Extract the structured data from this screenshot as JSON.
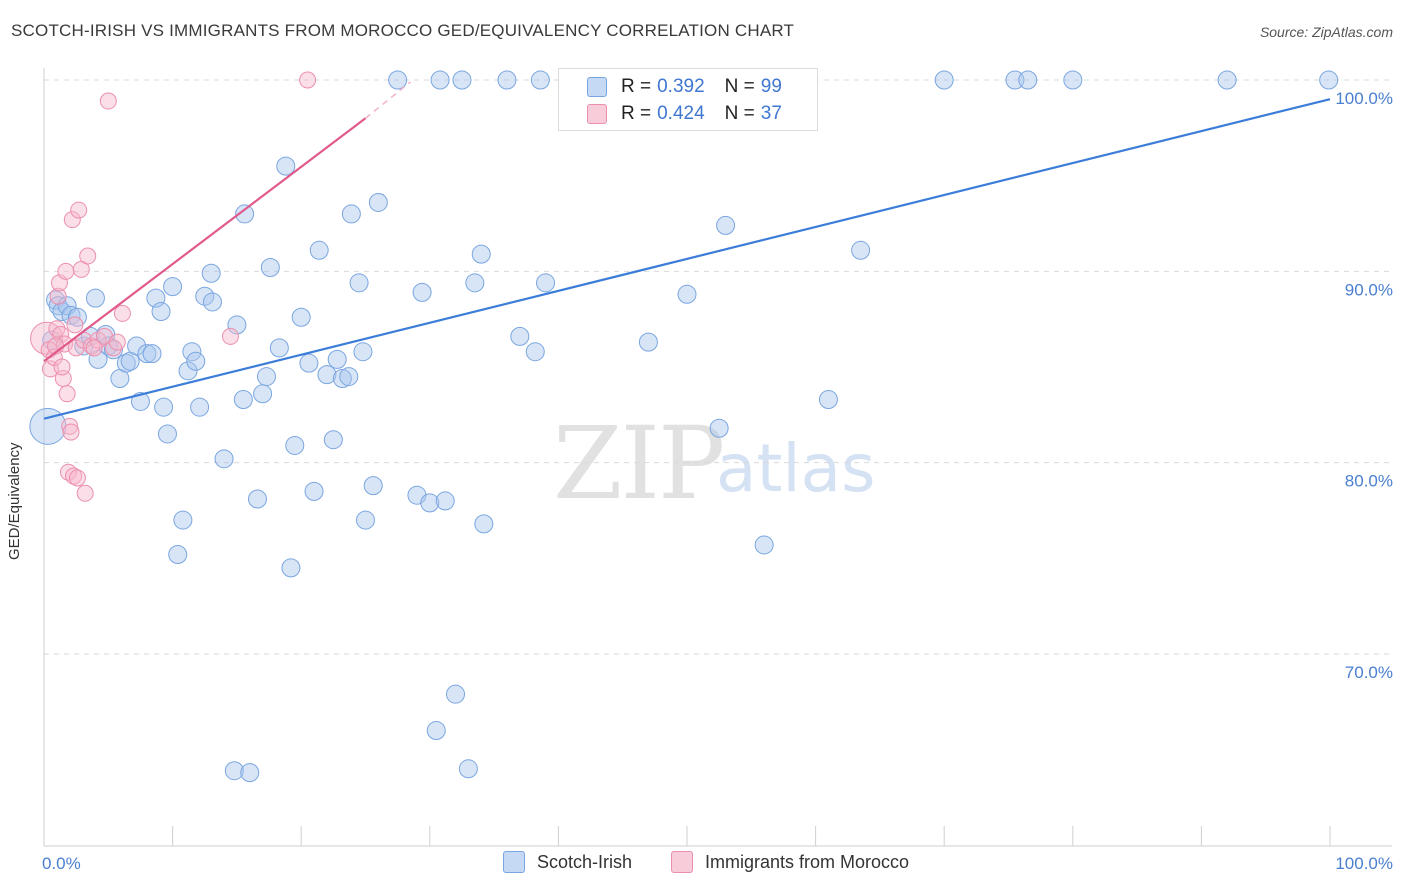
{
  "title": "SCOTCH-IRISH VS IMMIGRANTS FROM MOROCCO GED/EQUIVALENCY CORRELATION CHART",
  "source": "Source: ZipAtlas.com",
  "watermark": {
    "zip": "ZIP",
    "atlas": "atlas"
  },
  "legend_top": [
    {
      "r_label": "R =",
      "r_value": "0.392",
      "n_label": "N =",
      "n_value": "99"
    },
    {
      "r_label": "R =",
      "r_value": "0.424",
      "n_label": "N =",
      "n_value": "37"
    }
  ],
  "legend_bottom": [
    "Scotch-Irish",
    "Immigrants from Morocco"
  ],
  "colors": {
    "blue_fill": "#a8c6ee",
    "blue_stroke": "#7aa6e0",
    "blue_line": "#3b7dd8",
    "pink_fill": "#f6b8cc",
    "pink_stroke": "#ec8fae",
    "pink_line": "#e05a8c",
    "tick_text": "#4a7fd0",
    "grid": "#d9d9d9"
  },
  "chart_data": {
    "type": "scatter",
    "title": "SCOTCH-IRISH VS IMMIGRANTS FROM MOROCCO GED/EQUIVALENCY CORRELATION CHART",
    "xlabel": "",
    "ylabel": "GED/Equivalency",
    "xlim": [
      0,
      100
    ],
    "ylim": [
      60.5,
      101
    ],
    "x_tick_labels": [
      "0.0%",
      "100.0%"
    ],
    "y_ticks": [
      70,
      80,
      90,
      100
    ],
    "y_tick_labels": [
      "70.0%",
      "80.0%",
      "90.0%",
      "100.0%"
    ],
    "series": [
      {
        "name": "Scotch-Irish",
        "r": 0.392,
        "n": 99,
        "trend": {
          "x0": 0,
          "y0": 82.3,
          "x1": 100,
          "y1": 99.0
        },
        "points": [
          [
            0.3,
            81.9
          ],
          [
            0.6,
            86.4
          ],
          [
            0.9,
            88.5
          ],
          [
            1.1,
            88.2
          ],
          [
            1.4,
            87.9
          ],
          [
            1.8,
            88.2
          ],
          [
            2.1,
            87.7
          ],
          [
            2.6,
            87.6
          ],
          [
            3.1,
            86.1
          ],
          [
            3.6,
            86.6
          ],
          [
            4.0,
            88.6
          ],
          [
            4.2,
            85.4
          ],
          [
            4.8,
            86.7
          ],
          [
            5.0,
            86.1
          ],
          [
            5.4,
            85.9
          ],
          [
            5.9,
            84.4
          ],
          [
            6.4,
            85.2
          ],
          [
            6.7,
            85.3
          ],
          [
            7.2,
            86.1
          ],
          [
            7.5,
            83.2
          ],
          [
            8.0,
            85.7
          ],
          [
            8.4,
            85.7
          ],
          [
            8.7,
            88.6
          ],
          [
            9.1,
            87.9
          ],
          [
            9.3,
            82.9
          ],
          [
            9.6,
            81.5
          ],
          [
            10.0,
            89.2
          ],
          [
            10.4,
            75.2
          ],
          [
            10.8,
            77.0
          ],
          [
            11.2,
            84.8
          ],
          [
            11.5,
            85.8
          ],
          [
            11.8,
            85.3
          ],
          [
            12.1,
            82.9
          ],
          [
            12.5,
            88.7
          ],
          [
            13.0,
            89.9
          ],
          [
            13.1,
            88.4
          ],
          [
            14.0,
            80.2
          ],
          [
            14.8,
            63.9
          ],
          [
            15.5,
            83.3
          ],
          [
            15.6,
            93.0
          ],
          [
            16.0,
            63.8
          ],
          [
            16.6,
            78.1
          ],
          [
            17.0,
            83.6
          ],
          [
            17.3,
            84.5
          ],
          [
            17.6,
            90.2
          ],
          [
            18.3,
            86.0
          ],
          [
            18.8,
            95.5
          ],
          [
            19.2,
            74.5
          ],
          [
            20.0,
            87.6
          ],
          [
            20.6,
            85.2
          ],
          [
            21.0,
            78.5
          ],
          [
            21.4,
            91.1
          ],
          [
            22.0,
            84.6
          ],
          [
            22.5,
            81.2
          ],
          [
            22.8,
            85.4
          ],
          [
            23.2,
            84.4
          ],
          [
            23.7,
            84.5
          ],
          [
            23.9,
            93.0
          ],
          [
            24.5,
            89.4
          ],
          [
            24.8,
            85.8
          ],
          [
            25.0,
            77.0
          ],
          [
            25.6,
            78.8
          ],
          [
            26.0,
            93.6
          ],
          [
            27.5,
            100.0
          ],
          [
            29.0,
            78.3
          ],
          [
            29.4,
            88.9
          ],
          [
            30.0,
            77.9
          ],
          [
            30.5,
            66.0
          ],
          [
            30.8,
            100.0
          ],
          [
            31.2,
            78.0
          ],
          [
            32.0,
            67.9
          ],
          [
            32.5,
            100.0
          ],
          [
            33.0,
            64.0
          ],
          [
            33.5,
            89.4
          ],
          [
            34.2,
            76.8
          ],
          [
            36.0,
            100.0
          ],
          [
            37.0,
            86.6
          ],
          [
            38.2,
            85.8
          ],
          [
            38.6,
            100.0
          ],
          [
            39.0,
            89.4
          ],
          [
            42.0,
            100.0
          ],
          [
            45.0,
            100.0
          ],
          [
            50.0,
            88.8
          ],
          [
            52.5,
            81.8
          ],
          [
            53.0,
            92.4
          ],
          [
            55.0,
            100.0
          ],
          [
            56.0,
            75.7
          ],
          [
            61.0,
            83.3
          ],
          [
            63.5,
            91.1
          ],
          [
            70.0,
            100.0
          ],
          [
            75.5,
            100.0
          ],
          [
            76.5,
            100.0
          ],
          [
            80.0,
            100.0
          ],
          [
            92.0,
            100.0
          ],
          [
            99.9,
            100.0
          ],
          [
            15.0,
            87.2
          ],
          [
            19.5,
            80.9
          ],
          [
            34.0,
            90.9
          ],
          [
            47.0,
            86.3
          ]
        ]
      },
      {
        "name": "Immigrants from Morocco",
        "r": 0.424,
        "n": 37,
        "trend": {
          "x0": 0,
          "y0": 85.3,
          "x1": 25.0,
          "y1": 98.0,
          "dash_to_x": 28.5,
          "dash_to_y": 99.9
        },
        "points": [
          [
            0.2,
            86.5
          ],
          [
            0.4,
            85.9
          ],
          [
            0.5,
            84.9
          ],
          [
            0.8,
            85.5
          ],
          [
            1.0,
            87.0
          ],
          [
            1.1,
            88.7
          ],
          [
            1.2,
            89.4
          ],
          [
            1.3,
            86.7
          ],
          [
            1.5,
            84.4
          ],
          [
            1.6,
            86.2
          ],
          [
            1.7,
            90.0
          ],
          [
            1.8,
            83.6
          ],
          [
            1.9,
            79.5
          ],
          [
            2.0,
            81.9
          ],
          [
            2.1,
            81.6
          ],
          [
            2.2,
            92.7
          ],
          [
            2.3,
            79.3
          ],
          [
            2.5,
            86.0
          ],
          [
            2.6,
            79.2
          ],
          [
            2.7,
            93.2
          ],
          [
            2.9,
            90.1
          ],
          [
            3.1,
            86.4
          ],
          [
            3.2,
            78.4
          ],
          [
            3.4,
            90.8
          ],
          [
            3.7,
            86.1
          ],
          [
            4.2,
            86.4
          ],
          [
            4.7,
            86.6
          ],
          [
            5.0,
            98.9
          ],
          [
            5.4,
            86.0
          ],
          [
            5.7,
            86.3
          ],
          [
            6.1,
            87.8
          ],
          [
            14.5,
            86.6
          ],
          [
            20.5,
            100.0
          ],
          [
            0.9,
            86.1
          ],
          [
            1.4,
            85.0
          ],
          [
            2.4,
            87.2
          ],
          [
            3.9,
            86.0
          ]
        ]
      }
    ]
  }
}
